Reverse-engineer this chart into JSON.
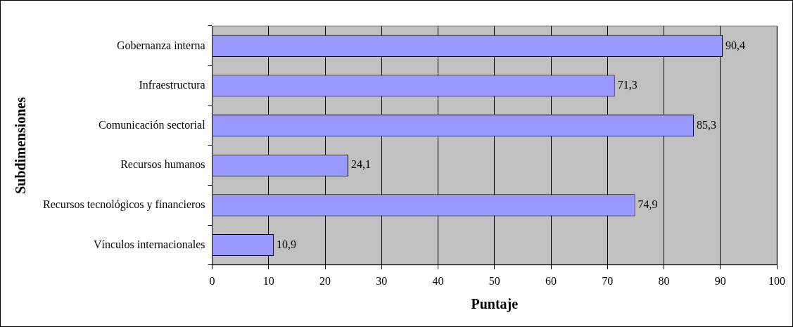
{
  "chart_data": {
    "type": "bar",
    "orientation": "horizontal",
    "xlabel": "Puntaje",
    "ylabel": "Subdimensiones",
    "categories": [
      "Gobernanza interna",
      "Infraestructura",
      "Comunicación sectorial",
      "Recursos humanos",
      "Recursos tecnológicos y financieros",
      "Vínculos internacionales"
    ],
    "values": [
      90.4,
      71.3,
      85.3,
      24.1,
      74.9,
      10.9
    ],
    "value_labels": [
      "90,4",
      "71,3",
      "85,3",
      "24,1",
      "74,9",
      "10,9"
    ],
    "color": "#9999ff",
    "xlim": [
      0,
      100
    ],
    "xticks": [
      0,
      10,
      20,
      30,
      40,
      50,
      60,
      70,
      80,
      90,
      100
    ],
    "grid": "x",
    "legend": false
  }
}
